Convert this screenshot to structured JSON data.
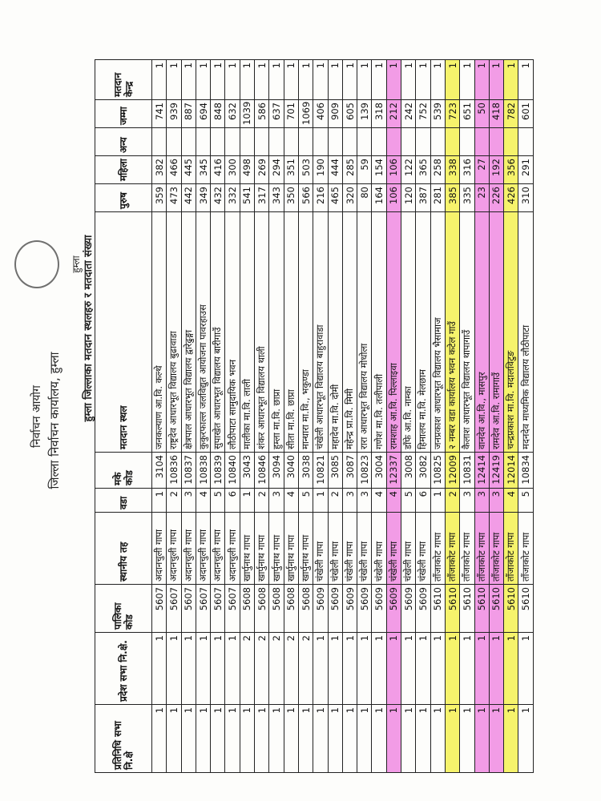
{
  "header": {
    "commission": "निर्वाचन आयोग",
    "office": "जिल्ला निर्वाचन कार्यालय, हुम्ला",
    "district": "हुम्ला",
    "table_title": "हुम्ला जिल्लाका मतदान स्थलहरु र मतदाता संख्या"
  },
  "table": {
    "columns": [
      "प्रतिनिधि सभा नि.क्षे",
      "प्रदेश सभा नि.क्षे.",
      "पालिका कोड",
      "स्थानीय तह",
      "वडा",
      "मके कोड",
      "मतदान स्थल",
      "पुरुष",
      "महिला",
      "अन्य",
      "जम्मा",
      "मतदान केन्द्र"
    ],
    "rows": [
      [
        1,
        1,
        5607,
        "अदानचुली गापा",
        1,
        3104,
        "जनकल्याण आ.वि. कल्थे",
        359,
        382,
        null,
        741,
        1
      ],
      [
        1,
        1,
        5607,
        "अदानचुली गापा",
        2,
        10836,
        "राष्ट्रदेव आधारभूत विद्यालय बुढावाडा",
        473,
        466,
        null,
        939,
        1
      ],
      [
        1,
        1,
        5607,
        "अदानचुली गापा",
        3,
        10837,
        "क्षेत्रपाल आधारभूत विद्यालय द्वारेढुङ्गा",
        442,
        445,
        null,
        887,
        1
      ],
      [
        1,
        1,
        5607,
        "अदानचुली गापा",
        4,
        10838,
        "कुकुरफाल्ल जलविद्युत आयोजना पावरहाउस",
        349,
        345,
        null,
        694,
        1
      ],
      [
        1,
        1,
        5607,
        "अदानचुली गापा",
        5,
        10839,
        "सुपाखेत आधारभूत विद्यालय बारीगाउँ",
        432,
        416,
        null,
        848,
        1
      ],
      [
        1,
        1,
        5607,
        "अदानचुली गापा",
        6,
        10840,
        "लौठीपाटा सामुदायिक भवन",
        332,
        300,
        null,
        632,
        1
      ],
      [
        1,
        2,
        5608,
        "खार्पुनाथ गापा",
        1,
        3043,
        "मालीका मा.वि. लाली",
        541,
        498,
        null,
        1039,
        1
      ],
      [
        1,
        2,
        5608,
        "खार्पुनाथ गापा",
        2,
        10846,
        "शंकर आधारभूत विद्यालय थाली",
        317,
        269,
        null,
        586,
        1
      ],
      [
        1,
        2,
        5608,
        "खार्पुनाथ गापा",
        3,
        3094,
        "हुम्ला मा.वि. छाप्रा",
        343,
        294,
        null,
        637,
        1
      ],
      [
        1,
        2,
        5608,
        "खार्पुनाथ गापा",
        4,
        3040,
        "सीता मा.वि. छाप्रा",
        350,
        351,
        null,
        701,
        1
      ],
      [
        1,
        2,
        5608,
        "खार्पुनाथ गापा",
        5,
        3038,
        "मान्धारा मा.वि., भकुण्डा",
        566,
        503,
        null,
        1069,
        1
      ],
      [
        1,
        1,
        5609,
        "चंखेली गापा",
        1,
        10821,
        "चंखेली आधारभूत विद्यालय बाहुरावाडा",
        216,
        190,
        null,
        406,
        1
      ],
      [
        1,
        1,
        5609,
        "चंखेली गापा",
        2,
        3085,
        "महादेव मा.वि. दोमी",
        465,
        444,
        null,
        909,
        1
      ],
      [
        1,
        1,
        5609,
        "चंखेली गापा",
        3,
        3087,
        "महेन्द्र प्रा.वि. मिमी",
        320,
        285,
        null,
        605,
        1
      ],
      [
        1,
        1,
        5609,
        "चंखेली गापा",
        3,
        10823,
        "रारा आधारभूत विद्यालय मोधोला",
        80,
        59,
        null,
        139,
        1
      ],
      [
        1,
        1,
        5609,
        "चंखेली गापा",
        4,
        3004,
        "गणेश मा.वि. तलीपाली",
        164,
        154,
        null,
        318,
        1
      ],
      [
        1,
        1,
        5609,
        "चंखेली गापा",
        4,
        12337,
        "रामशाह आ.वि. पिल्लाइवा",
        106,
        106,
        null,
        212,
        1
      ],
      [
        1,
        1,
        5609,
        "चंखेली गापा",
        5,
        3008,
        "डाँफे आ.वि. नाम्का",
        120,
        122,
        null,
        242,
        1
      ],
      [
        1,
        1,
        5609,
        "चंखेली गापा",
        6,
        3082,
        "हिमालय मा.वि. मेलछाम",
        387,
        365,
        null,
        752,
        1
      ],
      [
        1,
        1,
        5610,
        "ताँजाकोट गापा",
        1,
        10825,
        "जनप्रकाश आधारभूत विद्यालय भैसामाज",
        281,
        258,
        null,
        539,
        1
      ],
      [
        1,
        1,
        5610,
        "ताँजाकोट गापा",
        2,
        12009,
        "२ नम्बर वडा कार्यालय भवन कटेल गाउँ",
        385,
        338,
        null,
        723,
        1
      ],
      [
        1,
        1,
        5610,
        "ताँजाकोट गापा",
        3,
        10831,
        "कैलाश आधारभूत विद्यालय थापागाउँ",
        335,
        316,
        null,
        651,
        1
      ],
      [
        1,
        1,
        5610,
        "ताँजाकोट गापा",
        3,
        12414,
        "वानदेव आ.वि., मासपुर",
        23,
        27,
        null,
        50,
        1
      ],
      [
        1,
        1,
        5610,
        "ताँजाकोट गापा",
        3,
        12419,
        "रामदेव आ.वि. रामागाउँ",
        226,
        192,
        null,
        418,
        1
      ],
      [
        1,
        1,
        5610,
        "ताँजाकोट गापा",
        4,
        12014,
        "चन्द्रप्रकाश मा.वि. मदालविटुङ",
        426,
        356,
        null,
        782,
        1
      ],
      [
        1,
        1,
        5610,
        "ताँजाकोट गापा",
        5,
        10834,
        "मदनदेव माध्यमिक विद्यालय लौठीपाटा",
        310,
        291,
        null,
        601,
        1
      ]
    ]
  }
}
